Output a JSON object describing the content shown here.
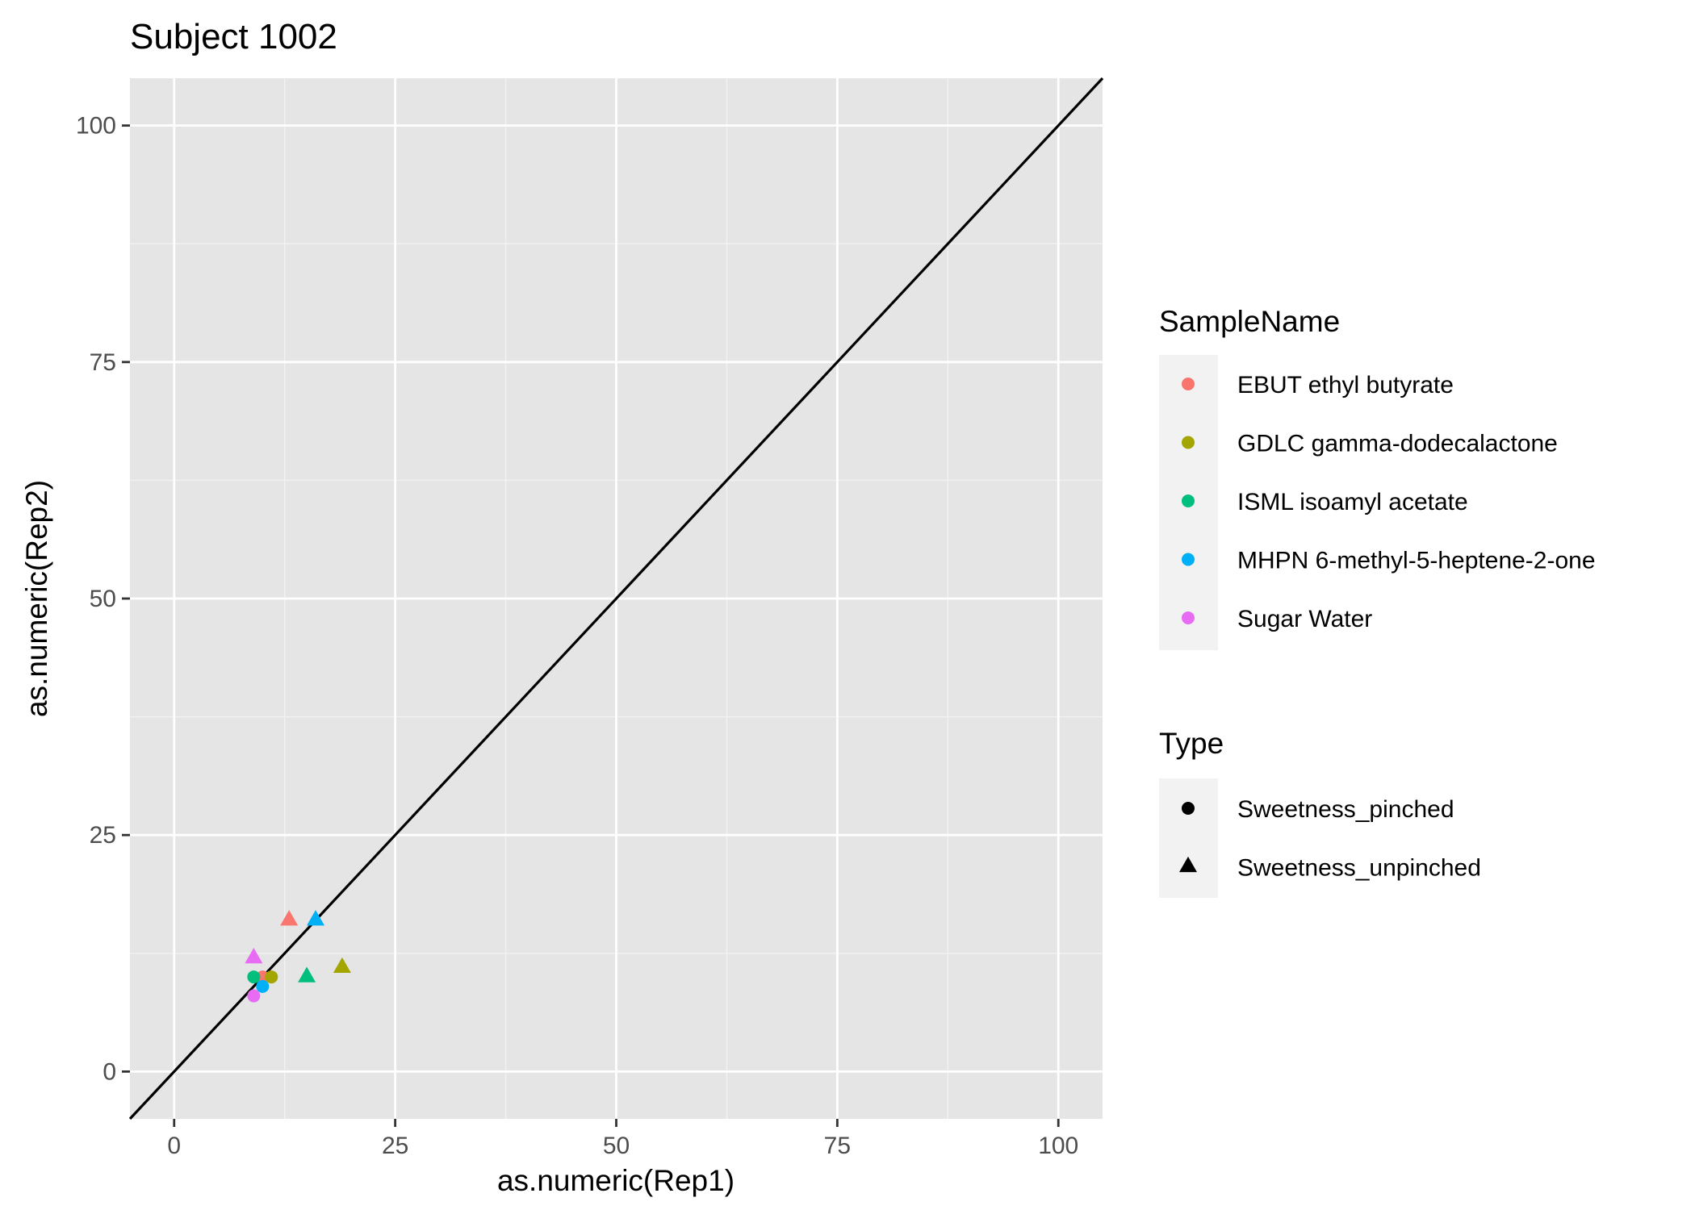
{
  "chart_data": {
    "type": "scatter",
    "title": "Subject 1002",
    "xlabel": "as.numeric(Rep1)",
    "ylabel": "as.numeric(Rep2)",
    "xlim": [
      -5,
      105
    ],
    "ylim": [
      -5,
      105
    ],
    "x_ticks": [
      0,
      25,
      50,
      75,
      100
    ],
    "y_ticks": [
      0,
      25,
      50,
      75,
      100
    ],
    "x_tick_labels": [
      "0",
      "25",
      "50",
      "75",
      "100"
    ],
    "y_tick_labels": [
      "0",
      "25",
      "50",
      "75",
      "100"
    ],
    "grid": true,
    "panel_background": "#e5e5e5",
    "reference_line": {
      "slope": 1,
      "intercept": 0,
      "color": "#000000"
    },
    "color_legend": {
      "title": "SampleName",
      "placement": "right",
      "entries": [
        {
          "label": "EBUT ethyl butyrate",
          "color": "#F8766D"
        },
        {
          "label": "GDLC gamma-dodecalactone",
          "color": "#A3A500"
        },
        {
          "label": "ISML isoamyl acetate",
          "color": "#00BF7D"
        },
        {
          "label": "MHPN 6-methyl-5-heptene-2-one",
          "color": "#00B0F6"
        },
        {
          "label": "Sugar Water",
          "color": "#E76BF3"
        }
      ]
    },
    "shape_legend": {
      "title": "Type",
      "placement": "right",
      "entries": [
        {
          "label": "Sweetness_pinched",
          "shape": "circle"
        },
        {
          "label": "Sweetness_unpinched",
          "shape": "triangle"
        }
      ]
    },
    "points": [
      {
        "sample": "EBUT ethyl butyrate",
        "type": "Sweetness_pinched",
        "x": 10,
        "y": 10
      },
      {
        "sample": "EBUT ethyl butyrate",
        "type": "Sweetness_unpinched",
        "x": 13,
        "y": 16
      },
      {
        "sample": "GDLC gamma-dodecalactone",
        "type": "Sweetness_pinched",
        "x": 11,
        "y": 10
      },
      {
        "sample": "GDLC gamma-dodecalactone",
        "type": "Sweetness_unpinched",
        "x": 19,
        "y": 11
      },
      {
        "sample": "ISML isoamyl acetate",
        "type": "Sweetness_pinched",
        "x": 9,
        "y": 10
      },
      {
        "sample": "ISML isoamyl acetate",
        "type": "Sweetness_unpinched",
        "x": 15,
        "y": 10
      },
      {
        "sample": "MHPN 6-methyl-5-heptene-2-one",
        "type": "Sweetness_pinched",
        "x": 10,
        "y": 9
      },
      {
        "sample": "MHPN 6-methyl-5-heptene-2-one",
        "type": "Sweetness_unpinched",
        "x": 16,
        "y": 16
      },
      {
        "sample": "Sugar Water",
        "type": "Sweetness_pinched",
        "x": 9,
        "y": 8
      },
      {
        "sample": "Sugar Water",
        "type": "Sweetness_unpinched",
        "x": 9,
        "y": 12
      }
    ]
  }
}
